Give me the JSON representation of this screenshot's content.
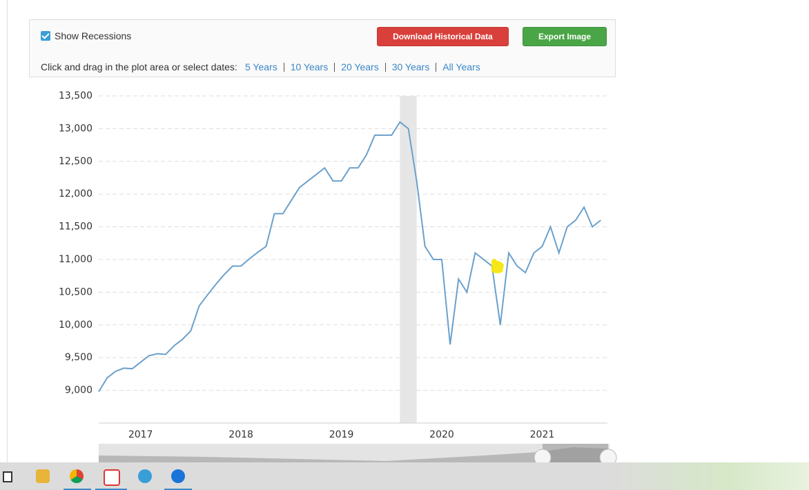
{
  "toolbar": {
    "checkbox_label": "Show Recessions",
    "download_button": "Download Historical Data",
    "export_button": "Export Image",
    "prompt": "Click and drag in the plot area or select dates:",
    "ranges": [
      "5 Years",
      "10 Years",
      "20 Years",
      "30 Years",
      "All Years"
    ]
  },
  "chart_data": {
    "type": "line",
    "color": "#6aa0cc",
    "x": [
      2016.583,
      2016.667,
      2016.75,
      2016.833,
      2016.917,
      2017.0,
      2017.083,
      2017.167,
      2017.25,
      2017.333,
      2017.417,
      2017.5,
      2017.583,
      2017.667,
      2017.75,
      2017.833,
      2017.917,
      2018.0,
      2018.083,
      2018.167,
      2018.25,
      2018.333,
      2018.417,
      2018.5,
      2018.583,
      2018.667,
      2018.75,
      2018.833,
      2018.917,
      2019.0,
      2019.083,
      2019.167,
      2019.25,
      2019.333,
      2019.417,
      2019.5,
      2019.583,
      2019.667,
      2019.75,
      2019.833,
      2019.917,
      2020.0,
      2020.083,
      2020.167,
      2020.25,
      2020.333,
      2020.417,
      2020.5,
      2020.583,
      2020.667,
      2020.75,
      2020.833,
      2020.917,
      2021.0,
      2021.083,
      2021.167,
      2021.25,
      2021.333,
      2021.417,
      2021.5,
      2021.583
    ],
    "values": [
      8980,
      9190,
      9290,
      9340,
      9330,
      9430,
      9530,
      9560,
      9550,
      9680,
      9780,
      9910,
      10290,
      10460,
      10620,
      10770,
      10900,
      10900,
      11010,
      11110,
      11200,
      11700,
      11700,
      11900,
      12100,
      12200,
      12300,
      12400,
      12200,
      12200,
      12400,
      12400,
      12600,
      12900,
      12900,
      12900,
      13100,
      13000,
      12200,
      11200,
      11000,
      11000,
      9700,
      10700,
      10500,
      11100,
      11000,
      10900,
      10000,
      11100,
      10900,
      10800,
      11100,
      11200,
      11500,
      11100,
      11500,
      11600,
      11800,
      11500,
      11600
    ],
    "recessions": [
      [
        2019.583,
        2019.75
      ]
    ],
    "recession_color": "#e6e6e6",
    "xlim": [
      2016.583,
      2021.65
    ],
    "ylim": [
      8500,
      13500
    ],
    "xticks": [
      2017,
      2018,
      2019,
      2020,
      2021
    ],
    "yticks": [
      {
        "value": 9000,
        "label": "9,000"
      },
      {
        "value": 9500,
        "label": "9,500"
      },
      {
        "value": 10000,
        "label": "10,000"
      },
      {
        "value": 10500,
        "label": "10,500"
      },
      {
        "value": 11000,
        "label": "11,000"
      },
      {
        "value": 11500,
        "label": "11,500"
      },
      {
        "value": 12000,
        "label": "12,000"
      },
      {
        "value": 12500,
        "label": "12,500"
      },
      {
        "value": 13000,
        "label": "13,000"
      },
      {
        "value": 13500,
        "label": "13,500"
      }
    ],
    "grid": true
  }
}
